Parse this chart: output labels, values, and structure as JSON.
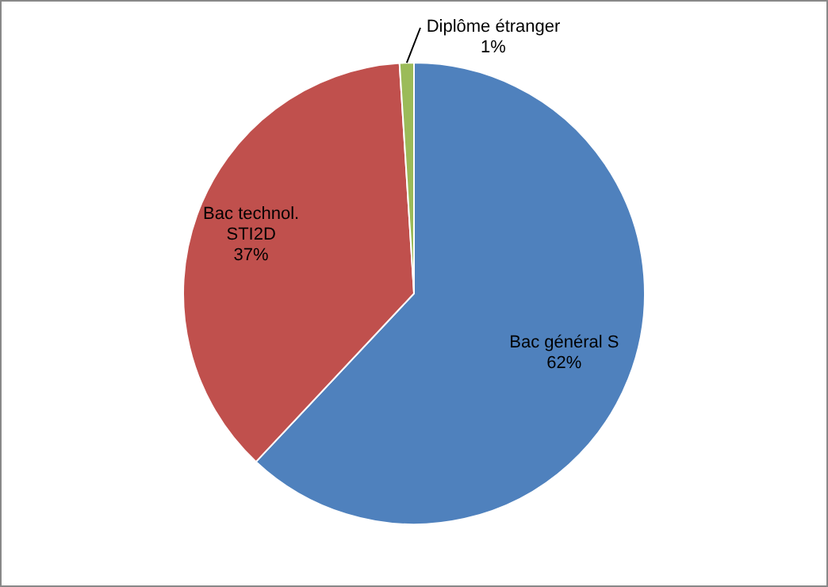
{
  "chart_data": {
    "type": "pie",
    "categories": [
      "Bac général S",
      "Bac technol. STI2D",
      "Diplôme étranger"
    ],
    "values": [
      62,
      37,
      1
    ],
    "colors": [
      "#4f81bd",
      "#c0504d",
      "#9bbb59"
    ],
    "value_labels": [
      "62%",
      "37%",
      "1%"
    ],
    "legend": false
  }
}
